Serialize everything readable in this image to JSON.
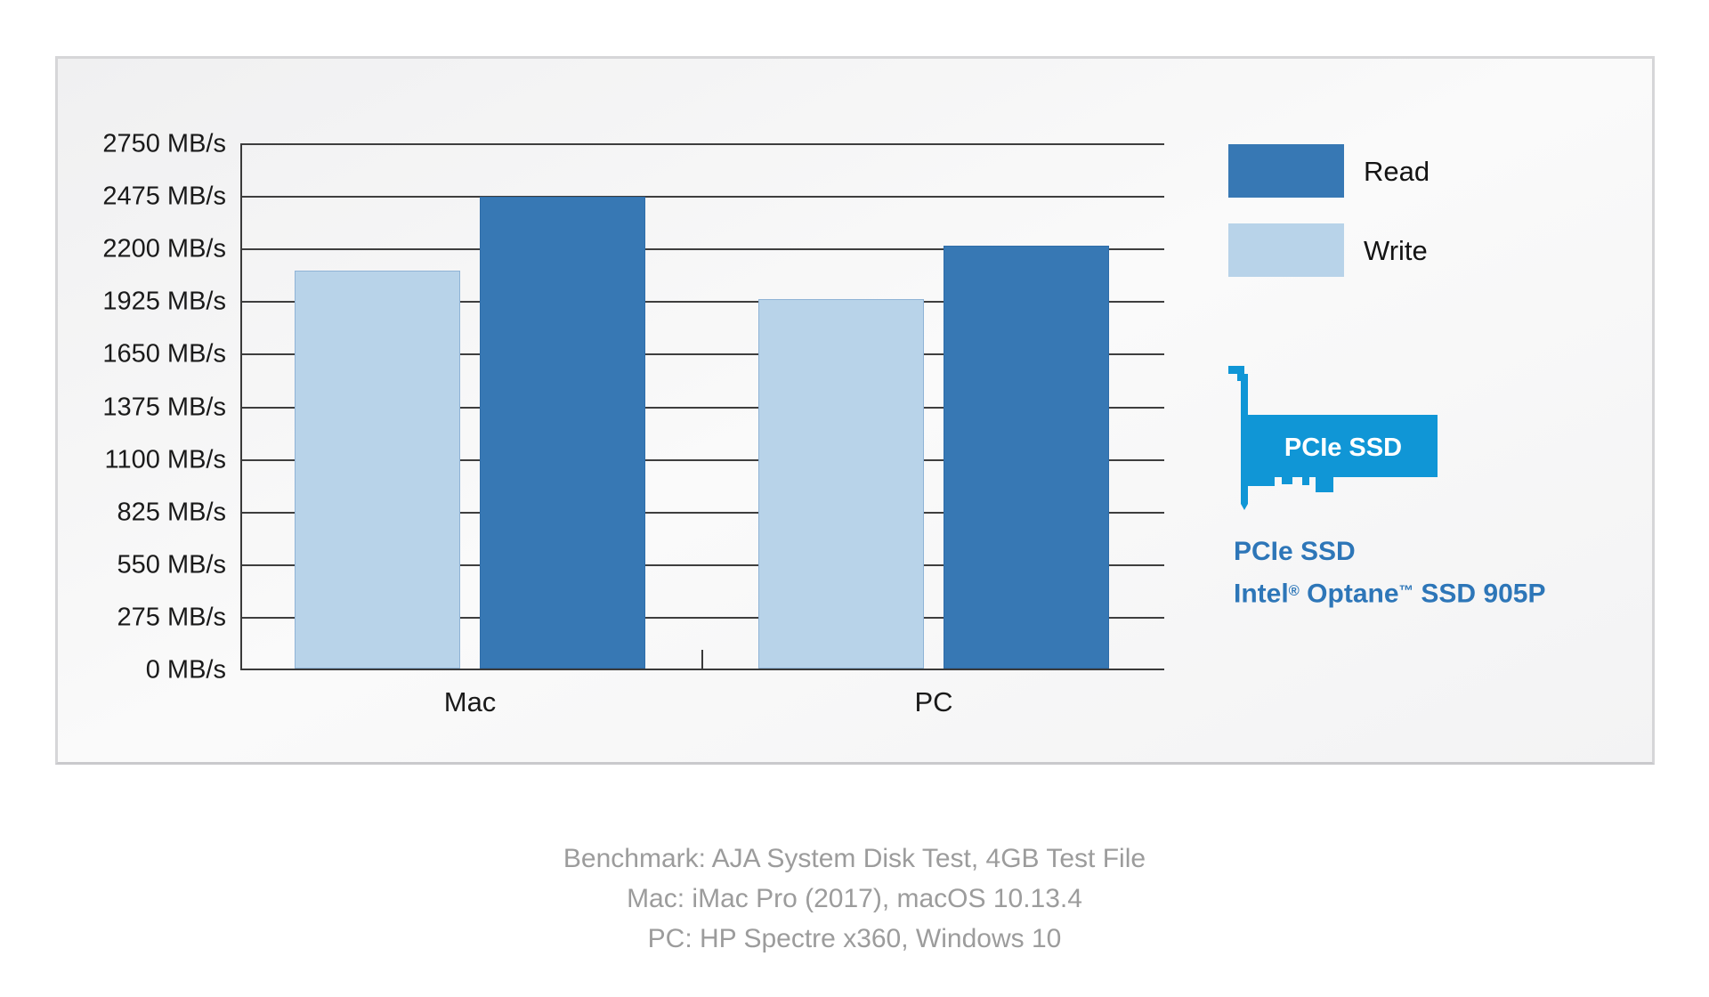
{
  "chart_data": {
    "type": "bar",
    "categories": [
      "Mac",
      "PC"
    ],
    "series": [
      {
        "name": "Write",
        "color": "#B8D3E9",
        "values": [
          2090,
          1940
        ]
      },
      {
        "name": "Read",
        "color": "#3778B4",
        "values": [
          2475,
          2220
        ]
      }
    ],
    "unit": "MB/s",
    "ylim": [
      0,
      2750
    ],
    "y_tick_step": 275,
    "grid": true,
    "legend_position": "top-right",
    "legend_order": [
      "Read",
      "Write"
    ]
  },
  "legend": {
    "read_label": "Read",
    "write_label": "Write"
  },
  "ssd_card": {
    "label": "PCIe SSD"
  },
  "product": {
    "line1": "PCIe SSD",
    "line2_intel": "Intel",
    "line2_reg": "®",
    "line2_optane": " Optane",
    "line2_tm": "™",
    "line2_rest": " SSD 905P"
  },
  "footer": {
    "lines": [
      "Benchmark: AJA System Disk Test, 4GB Test File",
      "Mac: iMac Pro (2017), macOS 10.13.4",
      "PC: HP Spectre x360, Windows 10"
    ]
  },
  "colors": {
    "bar_read": "#3778B4",
    "bar_write": "#B8D3E9",
    "card_blue": "#1096D6",
    "product_text": "#2D76B8",
    "footer_text": "#9C9C9C",
    "axis_text": "#1A1A1A"
  }
}
